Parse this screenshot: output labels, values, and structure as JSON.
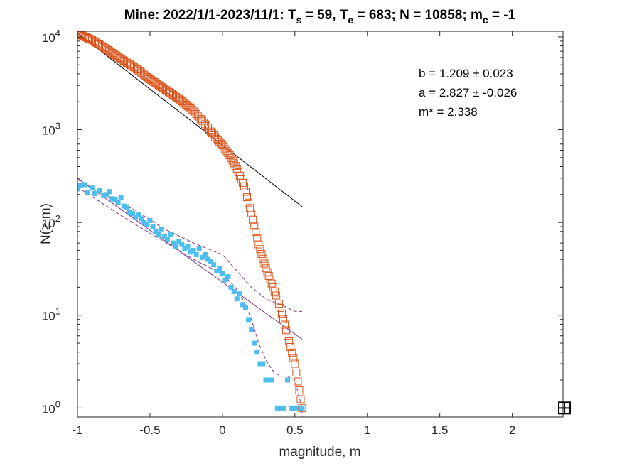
{
  "chart_data": {
    "type": "scatter",
    "title": {
      "main": "Mine: 2022/1/1-2023/11/1: T",
      "ts_sub": "s",
      "ts_val": " = 59, T",
      "te_sub": "e",
      "te_val": " = 683; N = 10858; m",
      "mc_sub": "c",
      "mc_val": " = -1"
    },
    "xlabel": "magnitude, m",
    "ylabel": "N(≥ m)",
    "xlim": [
      -1,
      2.35
    ],
    "ylim": [
      0.8,
      11500
    ],
    "yscale": "log",
    "grid": false,
    "xticks": [
      -1,
      -0.5,
      0,
      0.5,
      1,
      1.5,
      2
    ],
    "xtick_labels": [
      "-1",
      "-0.5",
      "0",
      "0.5",
      "1",
      "1.5",
      "2"
    ],
    "yticks": [
      1,
      10,
      100,
      1000,
      10000
    ],
    "ytick_labels": [
      {
        "base": "10",
        "exp": "0"
      },
      {
        "base": "10",
        "exp": "1"
      },
      {
        "base": "10",
        "exp": "2"
      },
      {
        "base": "10",
        "exp": "3"
      },
      {
        "base": "10",
        "exp": "4"
      }
    ],
    "annotations": [
      "b = 1.209 ± 0.023",
      "a = 2.827 ± -0.026",
      "m* = 2.338"
    ],
    "colors": {
      "cumulative": "#d95319",
      "noncumulative": "#4dbeee",
      "fit_cumulative": "#000000",
      "fit_noncumulative": "#7e2f8e",
      "mc_marker": "#000000"
    },
    "cumulative_curve": [
      [
        -1,
        10858
      ],
      [
        -0.9,
        9300
      ],
      [
        -0.8,
        7400
      ],
      [
        -0.7,
        5800
      ],
      [
        -0.6,
        4600
      ],
      [
        -0.5,
        3500
      ],
      [
        -0.4,
        2750
      ],
      [
        -0.3,
        2150
      ],
      [
        -0.2,
        1600
      ],
      [
        -0.15,
        1300
      ],
      [
        -0.1,
        1050
      ],
      [
        -0.05,
        830
      ],
      [
        0,
        680
      ],
      [
        0.05,
        530
      ],
      [
        0.1,
        380
      ],
      [
        0.15,
        245
      ],
      [
        0.2,
        125
      ],
      [
        0.25,
        58
      ],
      [
        0.3,
        32
      ],
      [
        0.35,
        20
      ],
      [
        0.4,
        12
      ],
      [
        0.45,
        6
      ],
      [
        0.5,
        3
      ],
      [
        0.55,
        1
      ]
    ],
    "noncumulative": [
      [
        -1,
        230
      ],
      [
        -0.98,
        250
      ],
      [
        -0.95,
        255
      ],
      [
        -0.93,
        210
      ],
      [
        -0.9,
        235
      ],
      [
        -0.88,
        205
      ],
      [
        -0.85,
        220
      ],
      [
        -0.82,
        195
      ],
      [
        -0.8,
        200
      ],
      [
        -0.78,
        215
      ],
      [
        -0.76,
        180
      ],
      [
        -0.74,
        175
      ],
      [
        -0.72,
        165
      ],
      [
        -0.7,
        185
      ],
      [
        -0.68,
        150
      ],
      [
        -0.66,
        145
      ],
      [
        -0.64,
        130
      ],
      [
        -0.62,
        125
      ],
      [
        -0.6,
        115
      ],
      [
        -0.58,
        120
      ],
      [
        -0.56,
        110
      ],
      [
        -0.54,
        100
      ],
      [
        -0.52,
        95
      ],
      [
        -0.5,
        105
      ],
      [
        -0.48,
        90
      ],
      [
        -0.46,
        80
      ],
      [
        -0.44,
        75
      ],
      [
        -0.42,
        85
      ],
      [
        -0.4,
        70
      ],
      [
        -0.38,
        65
      ],
      [
        -0.36,
        75
      ],
      [
        -0.34,
        60
      ],
      [
        -0.32,
        55
      ],
      [
        -0.3,
        62
      ],
      [
        -0.28,
        58
      ],
      [
        -0.26,
        52
      ],
      [
        -0.24,
        55
      ],
      [
        -0.22,
        48
      ],
      [
        -0.2,
        50
      ],
      [
        -0.18,
        45
      ],
      [
        -0.16,
        52
      ],
      [
        -0.14,
        42
      ],
      [
        -0.12,
        45
      ],
      [
        -0.1,
        40
      ],
      [
        -0.08,
        38
      ],
      [
        -0.06,
        35
      ],
      [
        -0.04,
        30
      ],
      [
        -0.02,
        32
      ],
      [
        0,
        28
      ],
      [
        0.02,
        24
      ],
      [
        0.04,
        26
      ],
      [
        0.06,
        20
      ],
      [
        0.08,
        18
      ],
      [
        0.1,
        15
      ],
      [
        0.12,
        17
      ],
      [
        0.14,
        13
      ],
      [
        0.16,
        12
      ],
      [
        0.18,
        9
      ],
      [
        0.2,
        7
      ],
      [
        0.22,
        5
      ],
      [
        0.24,
        4
      ],
      [
        0.26,
        3
      ],
      [
        0.28,
        3
      ],
      [
        0.3,
        2
      ],
      [
        0.32,
        2
      ],
      [
        0.34,
        2
      ],
      [
        0.38,
        1
      ],
      [
        0.4,
        1
      ],
      [
        0.42,
        1
      ],
      [
        0.45,
        2
      ],
      [
        0.48,
        1
      ],
      [
        0.5,
        1
      ],
      [
        0.52,
        1
      ],
      [
        0.55,
        1
      ]
    ],
    "fit_cumulative": {
      "x": [
        -1,
        0.55
      ],
      "y": [
        11000,
        148
      ]
    },
    "fit_noncumulative": {
      "x": [
        -1,
        0.55
      ],
      "y": [
        300,
        5.5
      ]
    },
    "confidence_upper": [
      [
        -1,
        290
      ],
      [
        -0.8,
        190
      ],
      [
        -0.6,
        135
      ],
      [
        -0.4,
        85
      ],
      [
        -0.2,
        60
      ],
      [
        0,
        45
      ],
      [
        0.1,
        30
      ],
      [
        0.2,
        20
      ],
      [
        0.3,
        15
      ],
      [
        0.4,
        13
      ],
      [
        0.45,
        12
      ],
      [
        0.5,
        11
      ],
      [
        0.55,
        11
      ]
    ],
    "confidence_lower": [
      [
        -1,
        240
      ],
      [
        -0.8,
        150
      ],
      [
        -0.6,
        95
      ],
      [
        -0.4,
        62
      ],
      [
        -0.2,
        40
      ],
      [
        0,
        28
      ],
      [
        0.1,
        19
      ],
      [
        0.15,
        14
      ],
      [
        0.2,
        9
      ],
      [
        0.25,
        5
      ],
      [
        0.3,
        3.3
      ],
      [
        0.35,
        2.5
      ],
      [
        0.4,
        2.2
      ],
      [
        0.45,
        2.2
      ],
      [
        0.5,
        2
      ],
      [
        0.55,
        1.0
      ],
      [
        0.55,
        0.8
      ]
    ],
    "mc_marker": [
      2.36,
      1
    ]
  }
}
